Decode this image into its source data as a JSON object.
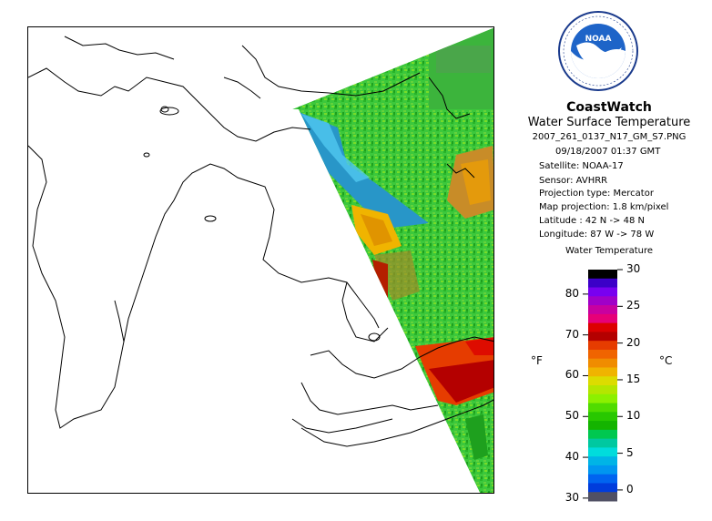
{
  "brand": "CoastWatch",
  "logo_text": "NOAA",
  "logo_ring_text": "NATIONAL OCEANIC AND ATMOSPHERIC ADMINISTRATION · U.S. DEPARTMENT OF COMMERCE",
  "product": "Water Surface Temperature",
  "filename": "2007_261_0137_N17_GM_S7.PNG",
  "datetime": "09/18/2007   01:37 GMT",
  "satellite": "Satellite: NOAA-17",
  "sensor": "Sensor: AVHRR",
  "projection": "Projection type:  Mercator",
  "map_projection": "Map projection: 1.8 km/pixel",
  "latitude": "Latitude : 42 N -> 48 N",
  "longitude": "Longitude: 87 W -> 78 W",
  "scale": {
    "title": "Water Temperature",
    "fahrenheit_unit": "°F",
    "celsius_unit": "°C",
    "fahrenheit_ticks": [
      "80",
      "70",
      "60",
      "50",
      "40",
      "30"
    ],
    "celsius_ticks": [
      "30",
      "25",
      "20",
      "15",
      "10",
      "5",
      "0"
    ],
    "colors": [
      "#000000",
      "#3c00c8",
      "#7800f0",
      "#a000c8",
      "#c800a0",
      "#e60078",
      "#dc0000",
      "#b40000",
      "#e63c00",
      "#f06400",
      "#f08c00",
      "#f0b400",
      "#dcdc00",
      "#b4e600",
      "#8cf000",
      "#50dc00",
      "#28c800",
      "#14b400",
      "#00c850",
      "#00c8a0",
      "#00dcdc",
      "#00b4e6",
      "#0096f0",
      "#0064f0",
      "#003cdc",
      "#505064"
    ]
  },
  "colors": {
    "land_outline": "#000000",
    "land_fill": "#ffffff",
    "no_data": "#ffffff",
    "warm_water": "#b40000"
  }
}
